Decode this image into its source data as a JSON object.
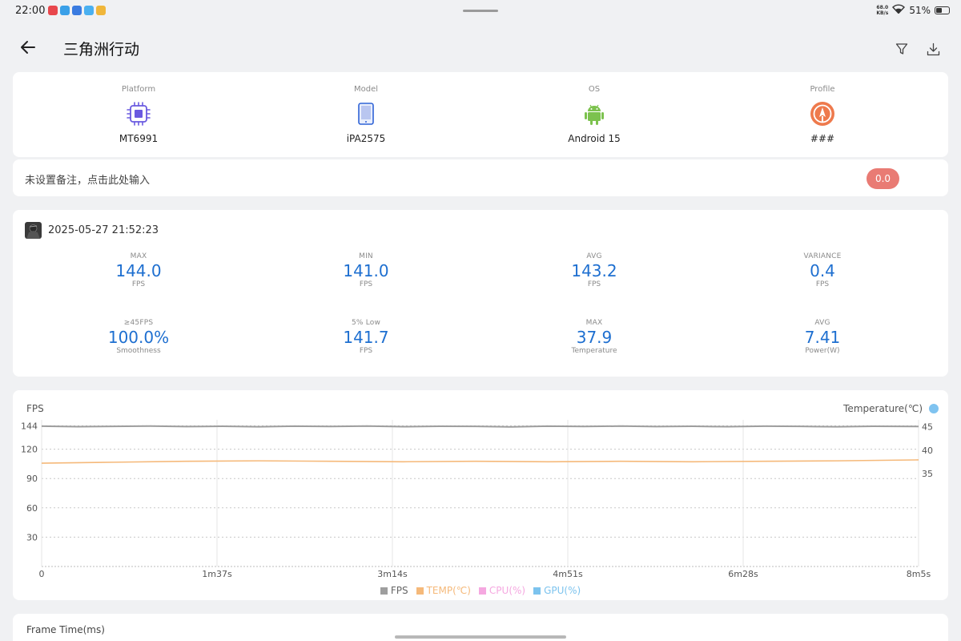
{
  "status_bar": {
    "time": "22:00",
    "app_icons": [
      "#e8474c",
      "#3aa0e8",
      "#3a7be0",
      "#4ab0f0",
      "#f0b63a"
    ],
    "net_speed_value": "68.0",
    "net_speed_unit": "KB/s",
    "battery": "51%",
    "battery_level": 0.51
  },
  "header": {
    "title": "三角洲行动",
    "back_icon": "arrow-left-icon",
    "filter_icon": "filter-icon",
    "download_icon": "download-icon"
  },
  "device": {
    "items": [
      {
        "label": "Platform",
        "value": "MT6991",
        "icon": "chip-icon"
      },
      {
        "label": "Model",
        "value": "iPA2575",
        "icon": "tablet-icon"
      },
      {
        "label": "OS",
        "value": "Android 15",
        "icon": "android-icon"
      },
      {
        "label": "Profile",
        "value": "###",
        "icon": "profile-icon"
      }
    ]
  },
  "note": {
    "text": "未设置备注，点击此处输入",
    "score": "0.0"
  },
  "session": {
    "datetime": "2025-05-27 21:52:23",
    "stats": [
      {
        "label": "MAX",
        "value": "144.0",
        "unit": "FPS"
      },
      {
        "label": "MIN",
        "value": "141.0",
        "unit": "FPS"
      },
      {
        "label": "AVG",
        "value": "143.2",
        "unit": "FPS"
      },
      {
        "label": "VARIANCE",
        "value": "0.4",
        "unit": "FPS"
      },
      {
        "label": "≥45FPS",
        "value": "100.0%",
        "unit": "Smoothness"
      },
      {
        "label": "5% Low",
        "value": "141.7",
        "unit": "FPS"
      },
      {
        "label": "MAX",
        "value": "37.9",
        "unit": "Temperature"
      },
      {
        "label": "AVG",
        "value": "7.41",
        "unit": "Power(W)"
      }
    ]
  },
  "chart": {
    "ylabel": "FPS",
    "y2label": "Temperature(℃)",
    "legend": [
      {
        "label": "FPS",
        "color": "#9e9e9e"
      },
      {
        "label": "TEMP(℃)",
        "color": "#f5b97a"
      },
      {
        "label": "CPU(%)",
        "color": "#f5a8e0"
      },
      {
        "label": "GPU(%)",
        "color": "#7cc3ee"
      }
    ]
  },
  "chart_data": {
    "type": "line",
    "x_ticks": [
      "0",
      "1m37s",
      "3m14s",
      "4m51s",
      "6m28s",
      "8m5s"
    ],
    "x_range_seconds": [
      0,
      485
    ],
    "y_ticks": [
      144,
      120,
      90,
      60,
      30
    ],
    "y_range": [
      0,
      150
    ],
    "y2_ticks": [
      45,
      40,
      35
    ],
    "y2_range": [
      15,
      46.5
    ],
    "series": [
      {
        "name": "FPS",
        "axis": "left",
        "color": "#9e9e9e",
        "x": [
          0,
          20,
          40,
          60,
          80,
          100,
          120,
          140,
          160,
          180,
          200,
          220,
          240,
          260,
          280,
          300,
          320,
          340,
          360,
          380,
          400,
          420,
          440,
          460,
          485
        ],
        "y": [
          143.5,
          143.0,
          143.3,
          143.6,
          143.1,
          143.4,
          142.9,
          143.5,
          143.2,
          143.6,
          143.0,
          143.4,
          143.3,
          142.8,
          143.5,
          143.2,
          143.6,
          143.1,
          143.4,
          143.0,
          143.5,
          143.3,
          142.9,
          143.4,
          143.2
        ]
      },
      {
        "name": "TEMP(℃)",
        "axis": "right",
        "color": "#f5b97a",
        "x": [
          0,
          40,
          80,
          120,
          160,
          200,
          240,
          280,
          320,
          360,
          400,
          440,
          485
        ],
        "y": [
          37.2,
          37.4,
          37.6,
          37.7,
          37.6,
          37.5,
          37.6,
          37.5,
          37.6,
          37.5,
          37.6,
          37.7,
          37.9
        ]
      }
    ],
    "grid": true,
    "legend_position": "bottom"
  }
}
